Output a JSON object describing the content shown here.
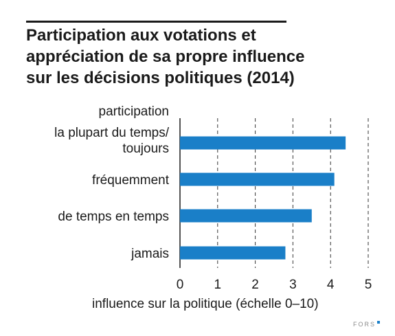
{
  "title_lines": [
    "Participation aux votations et",
    "appréciation de sa propre influence",
    "sur les décisions politiques (2014)"
  ],
  "credit": "FORS",
  "colors": {
    "bar": "#1a7fc8",
    "text": "#1a1a1a",
    "grid": "#333333"
  },
  "chart_data": {
    "type": "bar",
    "orientation": "horizontal",
    "ylabel": "participation",
    "xlabel": "influence sur la politique (échelle 0–10)",
    "categories": [
      [
        "la plupart du temps/",
        "toujours"
      ],
      [
        "fréquemment"
      ],
      [
        "de temps en temps"
      ],
      [
        "jamais"
      ]
    ],
    "values": [
      4.4,
      4.1,
      3.5,
      2.8
    ],
    "xlim": [
      0,
      5
    ],
    "xticks": [
      0,
      1,
      2,
      3,
      4,
      5
    ],
    "grid": "vertical dashed"
  }
}
